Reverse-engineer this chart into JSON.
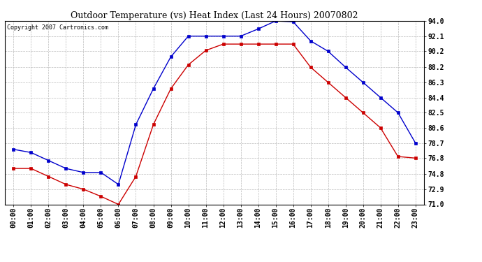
{
  "title": "Outdoor Temperature (vs) Heat Index (Last 24 Hours) 20070802",
  "copyright": "Copyright 2007 Cartronics.com",
  "x_labels": [
    "00:00",
    "01:00",
    "02:00",
    "03:00",
    "04:00",
    "05:00",
    "06:00",
    "07:00",
    "08:00",
    "09:00",
    "10:00",
    "11:00",
    "12:00",
    "13:00",
    "14:00",
    "15:00",
    "16:00",
    "17:00",
    "18:00",
    "19:00",
    "20:00",
    "21:00",
    "22:00",
    "23:00"
  ],
  "blue_data": [
    77.9,
    77.5,
    76.5,
    75.5,
    75.0,
    75.0,
    73.5,
    81.0,
    85.5,
    89.5,
    92.1,
    92.1,
    92.1,
    92.1,
    93.0,
    94.0,
    93.9,
    91.5,
    90.2,
    88.2,
    86.3,
    84.4,
    82.5,
    78.7
  ],
  "red_data": [
    75.5,
    75.5,
    74.5,
    73.5,
    72.9,
    72.0,
    71.0,
    74.5,
    81.0,
    85.5,
    88.5,
    90.3,
    91.1,
    91.1,
    91.1,
    91.1,
    91.1,
    88.2,
    86.3,
    84.4,
    82.5,
    80.6,
    77.0,
    76.8
  ],
  "blue_color": "#0000cc",
  "red_color": "#cc0000",
  "ylim": [
    71.0,
    94.0
  ],
  "yticks": [
    71.0,
    72.9,
    74.8,
    76.8,
    78.7,
    80.6,
    82.5,
    84.4,
    86.3,
    88.2,
    90.2,
    92.1,
    94.0
  ],
  "background_color": "#ffffff",
  "plot_bg_color": "#ffffff",
  "grid_color": "#bbbbbb",
  "title_fontsize": 9,
  "copyright_fontsize": 6,
  "tick_fontsize": 7
}
